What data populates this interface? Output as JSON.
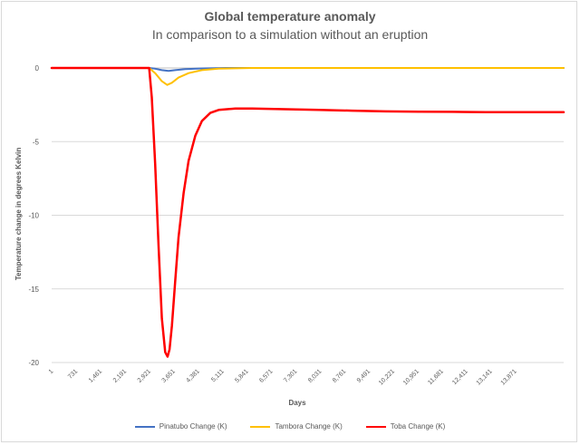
{
  "chart_data": {
    "type": "line",
    "title": "Global temperature anomaly",
    "subtitle": "In comparison to a simulation without an eruption",
    "xlabel": "Days",
    "ylabel": "Temperature change in degrees Kelvin",
    "ylim": [
      -20,
      0
    ],
    "yticks": [
      0,
      -5,
      -10,
      -15,
      -20
    ],
    "xlim": [
      1,
      15330
    ],
    "xticks": [
      "1",
      "731",
      "1,461",
      "2,191",
      "2,921",
      "3,651",
      "4,381",
      "5,111",
      "5,841",
      "6,571",
      "7,301",
      "8,031",
      "8,761",
      "9,491",
      "10,221",
      "10,951",
      "11,681",
      "12,411",
      "13,141",
      "13,871"
    ],
    "grid": "horizontal",
    "legend": "bottom",
    "series": [
      {
        "name": "Pinatubo Change (K)",
        "color": "#4472C4",
        "points": [
          [
            1,
            0
          ],
          [
            2921,
            0
          ],
          [
            3100,
            -0.05
          ],
          [
            3300,
            -0.15
          ],
          [
            3500,
            -0.2
          ],
          [
            3700,
            -0.15
          ],
          [
            4000,
            -0.08
          ],
          [
            4500,
            -0.03
          ],
          [
            5200,
            0
          ],
          [
            15330,
            0
          ]
        ]
      },
      {
        "name": "Tambora Change (K)",
        "color": "#FFC000",
        "points": [
          [
            1,
            0
          ],
          [
            2921,
            0
          ],
          [
            3100,
            -0.35
          ],
          [
            3300,
            -0.9
          ],
          [
            3460,
            -1.15
          ],
          [
            3600,
            -1.0
          ],
          [
            3800,
            -0.65
          ],
          [
            4100,
            -0.35
          ],
          [
            4500,
            -0.15
          ],
          [
            5000,
            -0.05
          ],
          [
            6000,
            0
          ],
          [
            15330,
            0
          ]
        ]
      },
      {
        "name": "Toba Change (K)",
        "color": "#FF0000",
        "points": [
          [
            1,
            0
          ],
          [
            2921,
            0
          ],
          [
            3000,
            -2.0
          ],
          [
            3100,
            -6.5
          ],
          [
            3200,
            -12.0
          ],
          [
            3300,
            -17.0
          ],
          [
            3400,
            -19.3
          ],
          [
            3470,
            -19.6
          ],
          [
            3530,
            -19.1
          ],
          [
            3600,
            -17.5
          ],
          [
            3700,
            -14.5
          ],
          [
            3800,
            -11.5
          ],
          [
            3950,
            -8.5
          ],
          [
            4100,
            -6.3
          ],
          [
            4300,
            -4.6
          ],
          [
            4500,
            -3.6
          ],
          [
            4750,
            -3.05
          ],
          [
            5000,
            -2.85
          ],
          [
            5500,
            -2.75
          ],
          [
            6000,
            -2.75
          ],
          [
            7000,
            -2.8
          ],
          [
            8000,
            -2.85
          ],
          [
            9000,
            -2.9
          ],
          [
            10000,
            -2.95
          ],
          [
            11000,
            -2.97
          ],
          [
            12000,
            -2.98
          ],
          [
            13000,
            -3.0
          ],
          [
            14000,
            -3.0
          ],
          [
            15330,
            -3.0
          ]
        ]
      }
    ]
  }
}
